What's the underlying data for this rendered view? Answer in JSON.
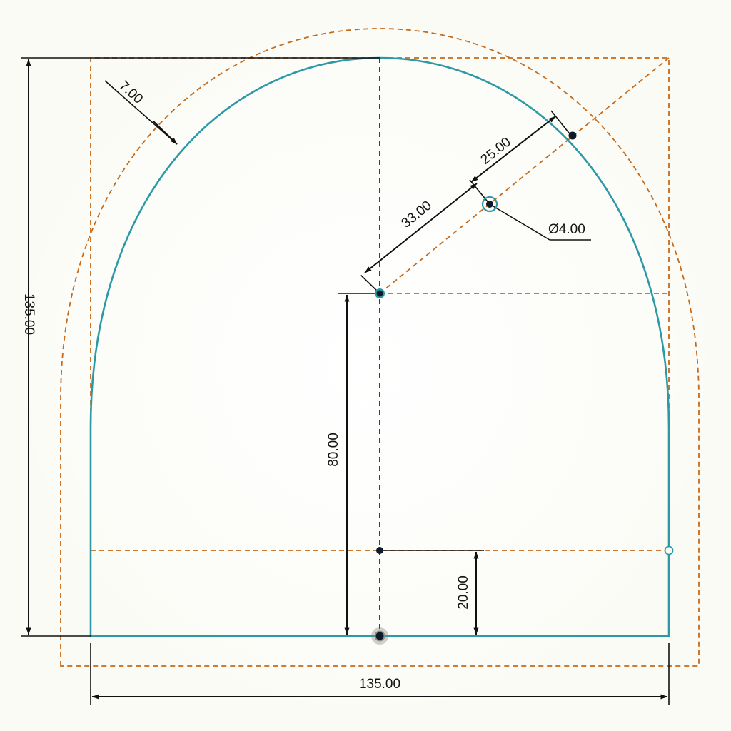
{
  "dimensions": {
    "height": "135.00",
    "width": "135.00",
    "center_height": "80.00",
    "lower_line": "20.00",
    "offset": "7.00",
    "arc_to_hole": "33.00",
    "hole_to_arc": "25.00",
    "hole_diameter": "Ø4.00"
  },
  "colors": {
    "background": "#fbfbf6",
    "profile": "#2b9aa6",
    "construction": "#c86a18",
    "dimension": "#111111",
    "point": "#0d1a2a"
  }
}
